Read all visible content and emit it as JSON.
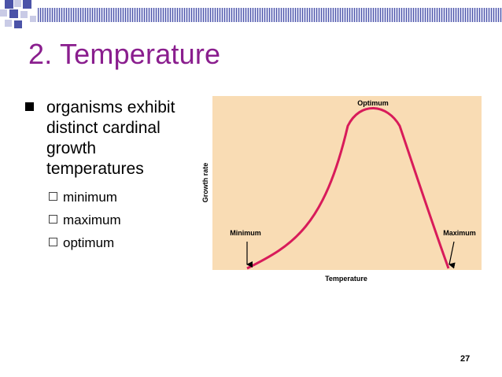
{
  "slide": {
    "title": "2. Temperature",
    "number": "27"
  },
  "bullets": {
    "main": "organisms exhibit distinct cardinal growth temperatures",
    "sub": [
      "minimum",
      "maximum",
      "optimum"
    ]
  },
  "chart_data": {
    "type": "line",
    "title": "",
    "xlabel": "Temperature",
    "ylabel": "Growth rate",
    "annotations": [
      "Optimum",
      "Minimum",
      "Maximum"
    ],
    "curve_color": "#d81b5a",
    "background": "#f9dcb4"
  },
  "theme": {
    "title_color": "#8a1e8e",
    "accent": "#4b53a8"
  }
}
